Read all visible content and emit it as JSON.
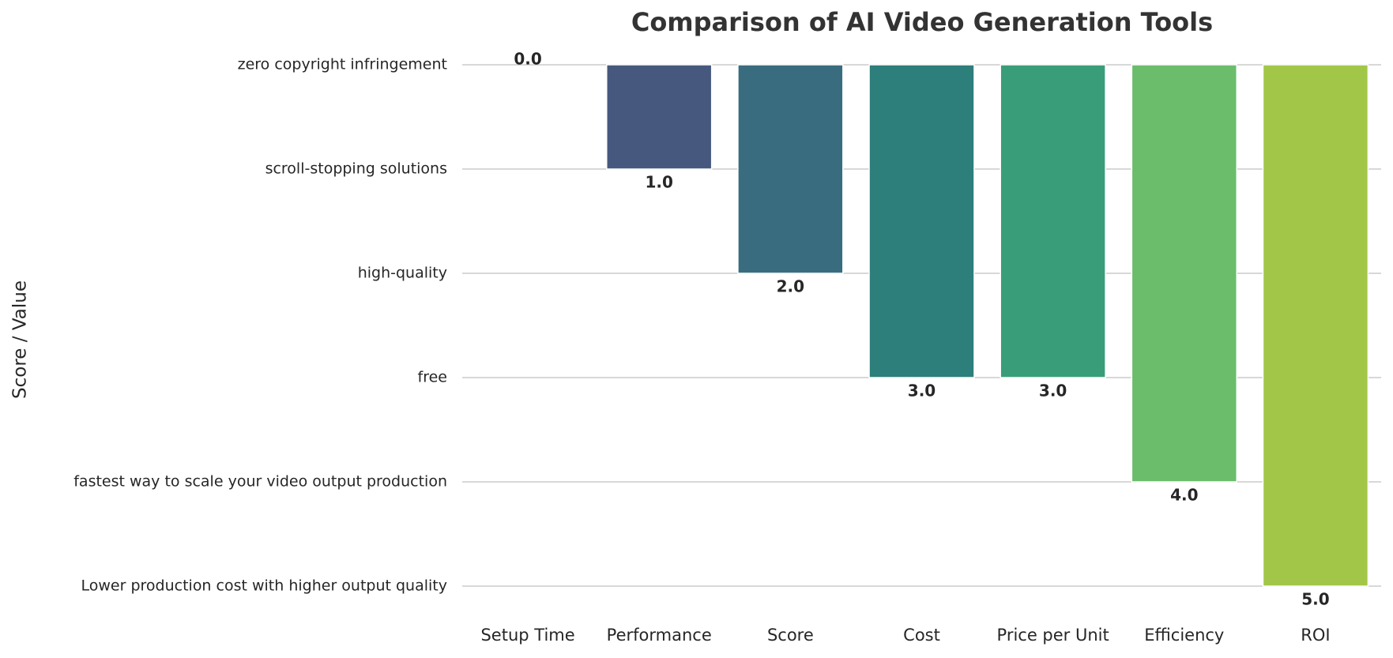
{
  "chart_data": {
    "type": "bar",
    "title": "Comparison of AI Video Generation Tools",
    "y_label": "Score / Value",
    "categories": [
      "Setup Time",
      "Performance",
      "Score",
      "Cost",
      "Price per Unit",
      "Efficiency",
      "ROI"
    ],
    "values": [
      0,
      1,
      2,
      3,
      3,
      4,
      5
    ],
    "value_labels": [
      "0.0",
      "1.0",
      "2.0",
      "3.0",
      "3.0",
      "4.0",
      "5.0"
    ],
    "colors": [
      "#440154",
      "#46587e",
      "#3a6c80",
      "#2d7f7b",
      "#3a9d7a",
      "#6bbd6c",
      "#a2c748"
    ],
    "ylim": [
      0,
      5
    ],
    "y_inverted": true,
    "yticks": [
      {
        "value": 0,
        "label": "zero copyright infringement"
      },
      {
        "value": 1,
        "label": "scroll-stopping solutions"
      },
      {
        "value": 2,
        "label": "high-quality"
      },
      {
        "value": 3,
        "label": "free"
      },
      {
        "value": 4,
        "label": "fastest way to scale your video output production"
      },
      {
        "value": 5,
        "label": "Lower production cost with higher output quality"
      }
    ],
    "grid": true
  }
}
